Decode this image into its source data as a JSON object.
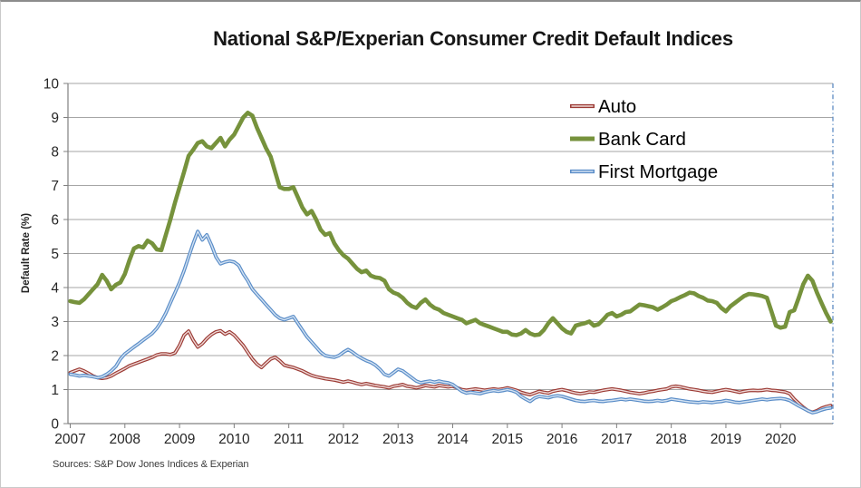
{
  "title": "National S&P/Experian Consumer Credit Default Indices",
  "source_note": "Sources: S&P Dow Jones Indices & Experian",
  "chart_data": {
    "type": "line",
    "title": "National S&P/Experian Consumer Credit Default Indices",
    "xlabel": "",
    "ylabel": "Default Rate (%)",
    "ylim": [
      0,
      10
    ],
    "y_ticks": [
      0,
      1,
      2,
      3,
      4,
      5,
      6,
      7,
      8,
      9,
      10
    ],
    "x_tick_labels": [
      "2007",
      "2008",
      "2009",
      "2010",
      "2011",
      "2012",
      "2013",
      "2014",
      "2015",
      "2016",
      "2017",
      "2018",
      "2019",
      "2020"
    ],
    "x_frequency": "monthly",
    "x_start": "2007-01",
    "x_end": "2020-12",
    "grid": true,
    "grid_color": "#a6a6a6",
    "axis_color": "#808080",
    "tick_label_color": "#262626",
    "right_edge_line_color": "#4f81bd",
    "legend_position": "inside-top-right",
    "series": [
      {
        "name": "Auto",
        "color": "#9c3b35",
        "color_inner": "#efd9d7",
        "values": [
          1.5,
          1.55,
          1.6,
          1.55,
          1.48,
          1.4,
          1.35,
          1.33,
          1.35,
          1.4,
          1.48,
          1.55,
          1.62,
          1.7,
          1.75,
          1.8,
          1.85,
          1.9,
          1.95,
          2.02,
          2.05,
          2.05,
          2.03,
          2.08,
          2.3,
          2.6,
          2.72,
          2.45,
          2.25,
          2.35,
          2.5,
          2.62,
          2.7,
          2.73,
          2.63,
          2.7,
          2.6,
          2.45,
          2.3,
          2.1,
          1.9,
          1.75,
          1.65,
          1.78,
          1.9,
          1.95,
          1.85,
          1.72,
          1.68,
          1.65,
          1.6,
          1.55,
          1.48,
          1.42,
          1.38,
          1.35,
          1.32,
          1.3,
          1.28,
          1.25,
          1.22,
          1.25,
          1.22,
          1.18,
          1.15,
          1.18,
          1.15,
          1.12,
          1.1,
          1.08,
          1.05,
          1.1,
          1.12,
          1.15,
          1.1,
          1.08,
          1.05,
          1.08,
          1.12,
          1.1,
          1.08,
          1.12,
          1.1,
          1.08,
          1.1,
          1.05,
          1.0,
          0.98,
          1.0,
          1.02,
          1.0,
          0.98,
          1.0,
          1.02,
          1.0,
          1.02,
          1.05,
          1.02,
          0.98,
          0.92,
          0.88,
          0.85,
          0.9,
          0.95,
          0.92,
          0.9,
          0.95,
          0.98,
          1.0,
          0.97,
          0.93,
          0.9,
          0.88,
          0.9,
          0.93,
          0.92,
          0.95,
          0.98,
          1.0,
          1.02,
          1.0,
          0.98,
          0.95,
          0.92,
          0.9,
          0.88,
          0.9,
          0.93,
          0.95,
          0.98,
          1.0,
          1.02,
          1.08,
          1.1,
          1.08,
          1.05,
          1.02,
          1.0,
          0.98,
          0.95,
          0.93,
          0.92,
          0.95,
          0.98,
          1.0,
          0.98,
          0.95,
          0.92,
          0.95,
          0.97,
          0.98,
          0.97,
          0.98,
          1.0,
          0.98,
          0.97,
          0.95,
          0.93,
          0.88,
          0.72,
          0.6,
          0.48,
          0.38,
          0.33,
          0.38,
          0.45,
          0.5,
          0.53
        ]
      },
      {
        "name": "Bank Card",
        "color": "#76923c",
        "color_inner": null,
        "values": [
          3.6,
          3.57,
          3.55,
          3.65,
          3.8,
          3.95,
          4.1,
          4.37,
          4.2,
          3.95,
          4.08,
          4.15,
          4.4,
          4.8,
          5.15,
          5.22,
          5.18,
          5.38,
          5.3,
          5.12,
          5.1,
          5.55,
          6.0,
          6.5,
          6.95,
          7.4,
          7.87,
          8.05,
          8.25,
          8.3,
          8.15,
          8.1,
          8.25,
          8.4,
          8.15,
          8.35,
          8.5,
          8.75,
          9.0,
          9.14,
          9.05,
          8.7,
          8.4,
          8.1,
          7.85,
          7.4,
          6.95,
          6.9,
          6.9,
          6.95,
          6.65,
          6.35,
          6.15,
          6.25,
          6.0,
          5.7,
          5.55,
          5.6,
          5.3,
          5.1,
          4.95,
          4.85,
          4.7,
          4.55,
          4.45,
          4.5,
          4.35,
          4.3,
          4.28,
          4.2,
          3.95,
          3.85,
          3.8,
          3.7,
          3.55,
          3.45,
          3.4,
          3.55,
          3.65,
          3.5,
          3.4,
          3.35,
          3.25,
          3.2,
          3.15,
          3.1,
          3.05,
          2.95,
          3.0,
          3.05,
          2.95,
          2.9,
          2.85,
          2.8,
          2.75,
          2.7,
          2.7,
          2.62,
          2.6,
          2.65,
          2.75,
          2.65,
          2.6,
          2.62,
          2.75,
          2.95,
          3.1,
          2.95,
          2.8,
          2.7,
          2.65,
          2.88,
          2.92,
          2.95,
          3.0,
          2.88,
          2.92,
          3.05,
          3.2,
          3.25,
          3.15,
          3.2,
          3.28,
          3.3,
          3.4,
          3.5,
          3.48,
          3.45,
          3.42,
          3.35,
          3.42,
          3.5,
          3.6,
          3.65,
          3.72,
          3.78,
          3.85,
          3.83,
          3.75,
          3.7,
          3.62,
          3.6,
          3.55,
          3.4,
          3.3,
          3.45,
          3.55,
          3.65,
          3.75,
          3.81,
          3.8,
          3.78,
          3.75,
          3.7,
          3.3,
          2.88,
          2.82,
          2.85,
          3.28,
          3.33,
          3.7,
          4.1,
          4.35,
          4.2,
          3.85,
          3.55,
          3.25,
          3.0
        ]
      },
      {
        "name": "First Mortgage",
        "color": "#5a8dc8",
        "color_inner": "#d3e2f2",
        "values": [
          1.45,
          1.43,
          1.4,
          1.42,
          1.4,
          1.38,
          1.35,
          1.38,
          1.45,
          1.55,
          1.68,
          1.9,
          2.05,
          2.15,
          2.25,
          2.35,
          2.45,
          2.55,
          2.65,
          2.8,
          3.0,
          3.25,
          3.55,
          3.85,
          4.15,
          4.5,
          4.9,
          5.3,
          5.65,
          5.4,
          5.55,
          5.25,
          4.9,
          4.7,
          4.75,
          4.78,
          4.75,
          4.65,
          4.4,
          4.2,
          3.95,
          3.8,
          3.65,
          3.5,
          3.35,
          3.2,
          3.1,
          3.05,
          3.1,
          3.15,
          2.95,
          2.75,
          2.55,
          2.4,
          2.25,
          2.1,
          2.0,
          1.97,
          1.95,
          2.0,
          2.1,
          2.18,
          2.1,
          2.0,
          1.92,
          1.85,
          1.8,
          1.72,
          1.6,
          1.45,
          1.4,
          1.5,
          1.6,
          1.55,
          1.45,
          1.35,
          1.25,
          1.2,
          1.23,
          1.25,
          1.22,
          1.25,
          1.22,
          1.2,
          1.15,
          1.05,
          0.95,
          0.9,
          0.92,
          0.9,
          0.88,
          0.92,
          0.95,
          0.97,
          0.95,
          0.97,
          1.0,
          0.97,
          0.92,
          0.8,
          0.72,
          0.65,
          0.75,
          0.8,
          0.78,
          0.76,
          0.8,
          0.82,
          0.8,
          0.76,
          0.72,
          0.68,
          0.66,
          0.65,
          0.67,
          0.68,
          0.66,
          0.65,
          0.67,
          0.68,
          0.7,
          0.72,
          0.7,
          0.72,
          0.7,
          0.68,
          0.66,
          0.65,
          0.66,
          0.68,
          0.66,
          0.68,
          0.72,
          0.7,
          0.68,
          0.66,
          0.64,
          0.63,
          0.62,
          0.64,
          0.63,
          0.62,
          0.64,
          0.65,
          0.68,
          0.66,
          0.63,
          0.62,
          0.64,
          0.66,
          0.68,
          0.7,
          0.72,
          0.7,
          0.72,
          0.73,
          0.74,
          0.72,
          0.68,
          0.6,
          0.52,
          0.45,
          0.38,
          0.32,
          0.35,
          0.4,
          0.44,
          0.46
        ]
      }
    ]
  },
  "legend": {
    "items": [
      {
        "label": "Auto"
      },
      {
        "label": "Bank Card"
      },
      {
        "label": "First Mortgage"
      }
    ]
  }
}
